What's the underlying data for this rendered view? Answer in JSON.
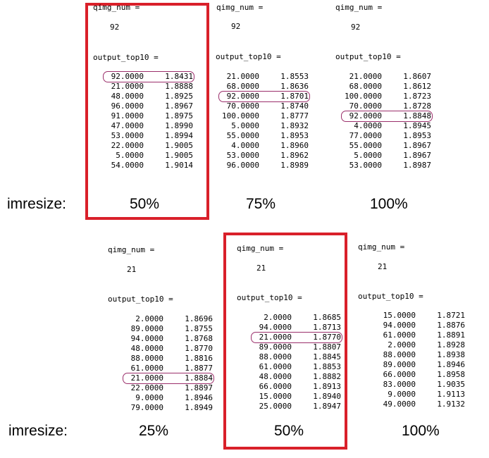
{
  "rows": [
    {
      "label": "imresize:",
      "panels": [
        {
          "qimg_label": "qimg_num =",
          "qimg_value": "92",
          "output_label": "output_top10 =",
          "entries": [
            [
              "92.0000",
              "1.8431"
            ],
            [
              "21.0000",
              "1.8888"
            ],
            [
              "48.0000",
              "1.8925"
            ],
            [
              "96.0000",
              "1.8967"
            ],
            [
              "91.0000",
              "1.8975"
            ],
            [
              "47.0000",
              "1.8990"
            ],
            [
              "53.0000",
              "1.8994"
            ],
            [
              "22.0000",
              "1.9005"
            ],
            [
              "5.0000",
              "1.9005"
            ],
            [
              "54.0000",
              "1.9014"
            ]
          ],
          "highlight_index": 0,
          "scale": "50%",
          "selected": true
        },
        {
          "qimg_label": "qimg_num =",
          "qimg_value": "92",
          "output_label": "output_top10 =",
          "entries": [
            [
              "21.0000",
              "1.8553"
            ],
            [
              "68.0000",
              "1.8636"
            ],
            [
              "92.0000",
              "1.8701"
            ],
            [
              "70.0000",
              "1.8740"
            ],
            [
              "100.0000",
              "1.8777"
            ],
            [
              "5.0000",
              "1.8932"
            ],
            [
              "55.0000",
              "1.8953"
            ],
            [
              "4.0000",
              "1.8960"
            ],
            [
              "53.0000",
              "1.8962"
            ],
            [
              "96.0000",
              "1.8989"
            ]
          ],
          "highlight_index": 2,
          "scale": "75%",
          "selected": false
        },
        {
          "qimg_label": "qimg_num =",
          "qimg_value": "92",
          "output_label": "output_top10 =",
          "entries": [
            [
              "21.0000",
              "1.8607"
            ],
            [
              "68.0000",
              "1.8612"
            ],
            [
              "100.0000",
              "1.8723"
            ],
            [
              "70.0000",
              "1.8728"
            ],
            [
              "92.0000",
              "1.8848"
            ],
            [
              "4.0000",
              "1.8945"
            ],
            [
              "77.0000",
              "1.8953"
            ],
            [
              "55.0000",
              "1.8967"
            ],
            [
              "5.0000",
              "1.8967"
            ],
            [
              "53.0000",
              "1.8987"
            ]
          ],
          "highlight_index": 4,
          "scale": "100%",
          "selected": false
        }
      ]
    },
    {
      "label": "imresize:",
      "panels": [
        {
          "qimg_label": "qimg_num =",
          "qimg_value": "21",
          "output_label": "output_top10 =",
          "entries": [
            [
              "2.0000",
              "1.8696"
            ],
            [
              "89.0000",
              "1.8755"
            ],
            [
              "94.0000",
              "1.8768"
            ],
            [
              "48.0000",
              "1.8770"
            ],
            [
              "88.0000",
              "1.8816"
            ],
            [
              "61.0000",
              "1.8877"
            ],
            [
              "21.0000",
              "1.8884"
            ],
            [
              "22.0000",
              "1.8897"
            ],
            [
              "9.0000",
              "1.8946"
            ],
            [
              "79.0000",
              "1.8949"
            ]
          ],
          "highlight_index": 6,
          "scale": "25%",
          "selected": false
        },
        {
          "qimg_label": "qimg_num =",
          "qimg_value": "21",
          "output_label": "output_top10 =",
          "entries": [
            [
              "2.0000",
              "1.8685"
            ],
            [
              "94.0000",
              "1.8713"
            ],
            [
              "21.0000",
              "1.8770"
            ],
            [
              "89.0000",
              "1.8807"
            ],
            [
              "88.0000",
              "1.8845"
            ],
            [
              "61.0000",
              "1.8853"
            ],
            [
              "48.0000",
              "1.8882"
            ],
            [
              "66.0000",
              "1.8913"
            ],
            [
              "15.0000",
              "1.8940"
            ],
            [
              "25.0000",
              "1.8947"
            ]
          ],
          "highlight_index": 2,
          "scale": "50%",
          "selected": true
        },
        {
          "qimg_label": "qimg_num =",
          "qimg_value": "21",
          "output_label": "output_top10 =",
          "entries": [
            [
              "15.0000",
              "1.8721"
            ],
            [
              "94.0000",
              "1.8876"
            ],
            [
              "61.0000",
              "1.8891"
            ],
            [
              "2.0000",
              "1.8928"
            ],
            [
              "88.0000",
              "1.8938"
            ],
            [
              "89.0000",
              "1.8946"
            ],
            [
              "66.0000",
              "1.8958"
            ],
            [
              "83.0000",
              "1.9035"
            ],
            [
              "9.0000",
              "1.9113"
            ],
            [
              "49.0000",
              "1.9132"
            ]
          ],
          "highlight_index": null,
          "scale": "100%",
          "selected": false
        }
      ]
    }
  ],
  "colors": {
    "selection_box": "#d9202a",
    "highlight_oval": "#9b2f6b"
  }
}
